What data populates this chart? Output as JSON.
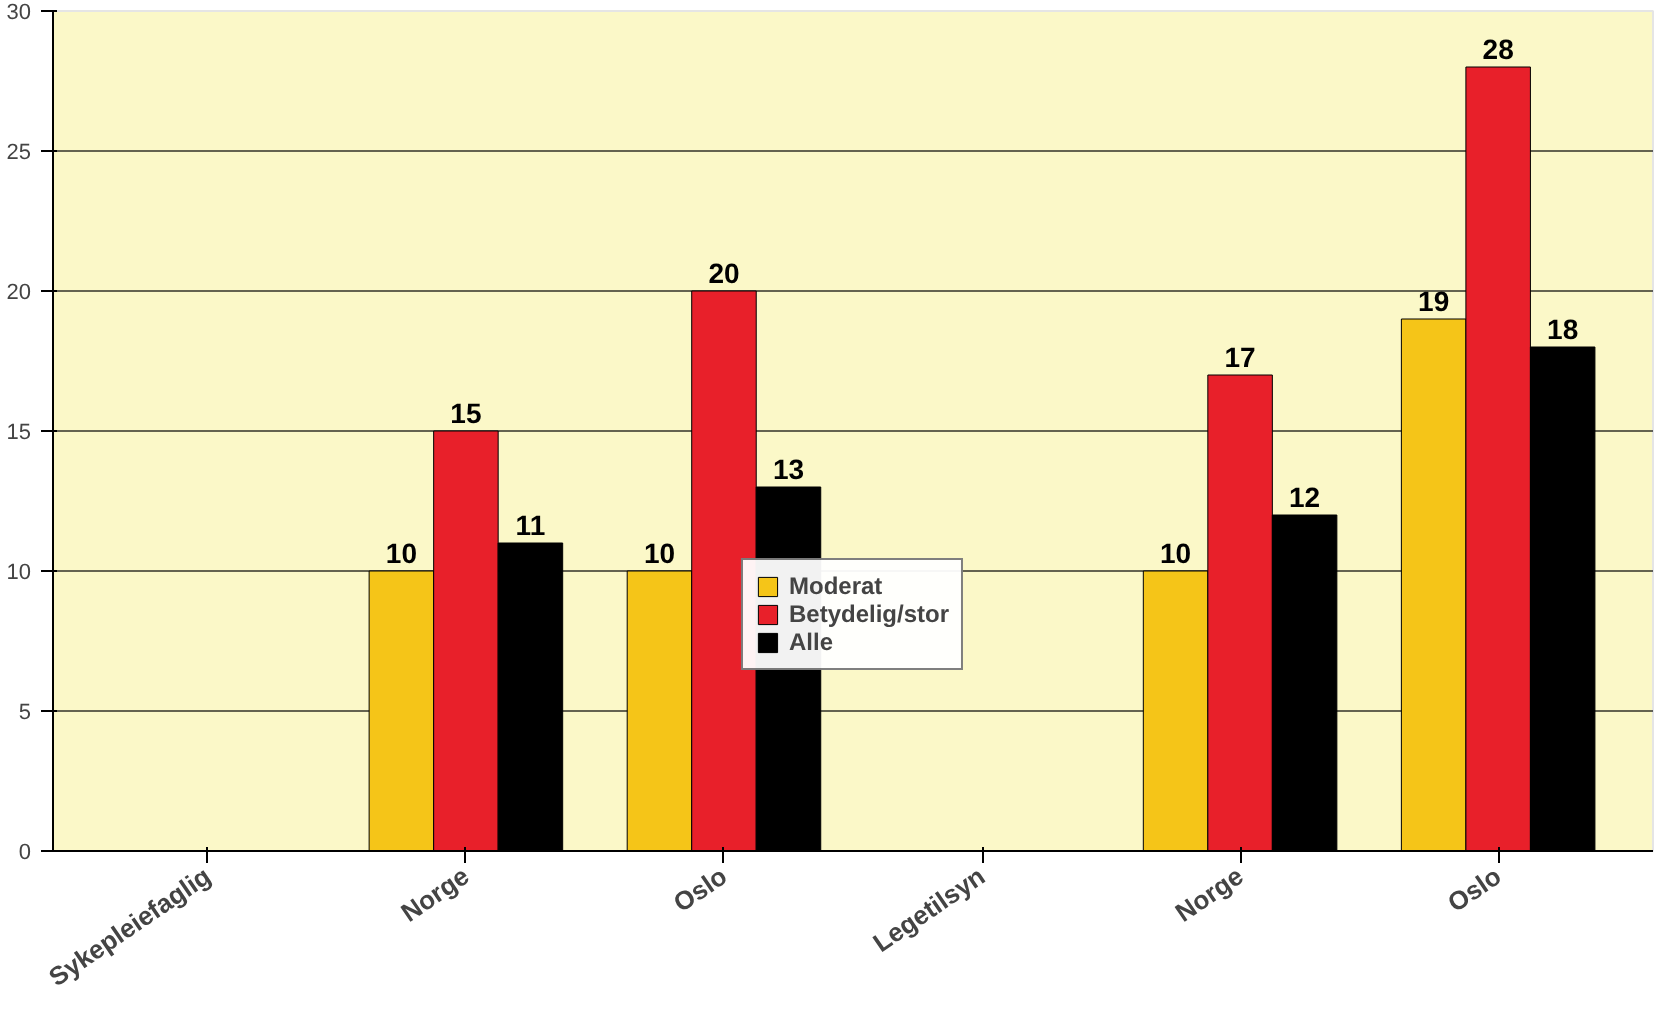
{
  "chart_data": {
    "type": "bar",
    "categories": [
      "Sykepleiefaglig",
      "Norge",
      "Oslo",
      "Legetilsyn",
      "Norge",
      "Oslo"
    ],
    "series": [
      {
        "name": "Moderat",
        "color": "#f5c518",
        "values": [
          null,
          10,
          10,
          null,
          10,
          19
        ]
      },
      {
        "name": "Betydelig/stor",
        "color": "#e8202a",
        "values": [
          null,
          15,
          20,
          null,
          17,
          28
        ]
      },
      {
        "name": "Alle",
        "color": "#000000",
        "values": [
          null,
          11,
          13,
          null,
          12,
          18
        ]
      }
    ],
    "ylim": [
      0,
      30
    ],
    "yticks": [
      0,
      5,
      10,
      15,
      20,
      25,
      30
    ],
    "grid": "y",
    "legend": "bottom center",
    "data_labels": true
  }
}
